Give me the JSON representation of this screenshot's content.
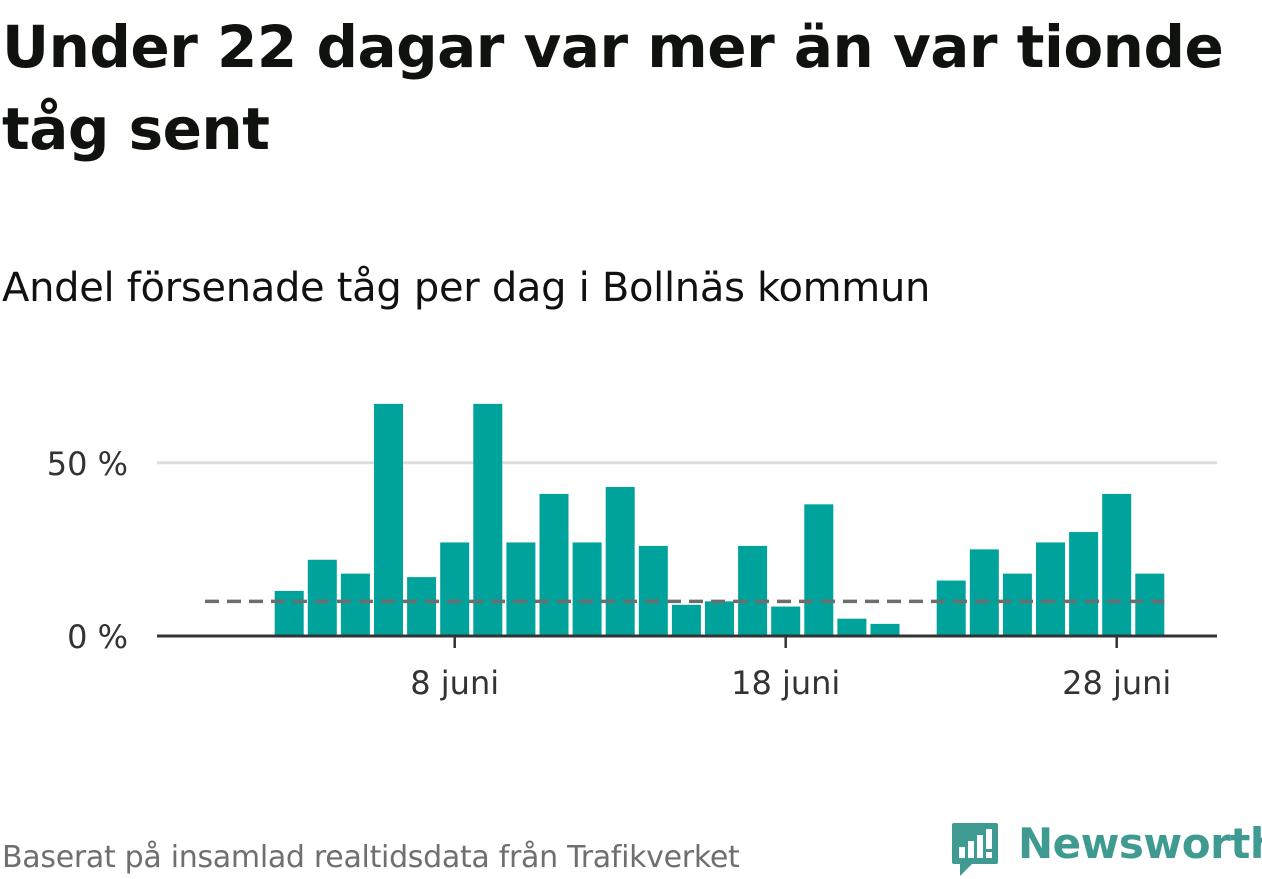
{
  "header": {
    "title": "Under 22 dagar var mer än var tionde tåg sent",
    "subtitle": "Andel försenade tåg per dag i Bollnäs kommun"
  },
  "footer": {
    "source": "Baserat på insamlad realtidsdata från Trafikverket",
    "brand": "Newsworthy"
  },
  "colors": {
    "bar": "#00a39b",
    "reference_line": "#6d6d6d",
    "grid": "#dddddd",
    "axis": "#333333",
    "brand": "#3f9a92"
  },
  "icons": {
    "brand_logo": "newsworthy-logo-icon"
  },
  "chart_data": {
    "type": "bar",
    "title": "Andel försenade tåg per dag i Bollnäs kommun",
    "xlabel": "",
    "ylabel": "",
    "x": [
      "1 juni",
      "2 juni",
      "3 juni",
      "4 juni",
      "5 juni",
      "6 juni",
      "7 juni",
      "8 juni",
      "9 juni",
      "10 juni",
      "11 juni",
      "12 juni",
      "13 juni",
      "14 juni",
      "15 juni",
      "16 juni",
      "17 juni",
      "18 juni",
      "19 juni",
      "20 juni",
      "21 juni",
      "22 juni",
      "23 juni",
      "24 juni",
      "25 juni",
      "26 juni",
      "27 juni",
      "28 juni",
      "29 juni",
      "30 juni"
    ],
    "values": [
      null,
      null,
      13,
      22,
      18,
      67,
      17,
      27,
      67,
      27,
      41,
      27,
      43,
      26,
      9,
      10,
      26,
      8.5,
      38,
      5,
      3.5,
      null,
      16,
      25,
      18,
      27,
      30,
      41,
      18,
      null
    ],
    "reference_line": {
      "value": 10,
      "style": "dashed"
    },
    "x_ticks": [
      {
        "index": 7,
        "label": "8 juni"
      },
      {
        "index": 17,
        "label": "18 juni"
      },
      {
        "index": 27,
        "label": "28 juni"
      }
    ],
    "y_ticks": [
      {
        "value": 0,
        "label": "0 %"
      },
      {
        "value": 50,
        "label": "50 %"
      }
    ],
    "ylim": [
      0,
      70
    ],
    "grid": true
  }
}
